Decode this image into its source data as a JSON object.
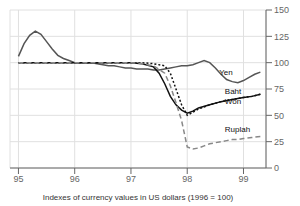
{
  "chart_data": {
    "type": "line",
    "x_label": "Indexes of currency values in US dollars (1996 = 100)",
    "xlim": [
      94.85,
      99.4
    ],
    "ylim": [
      0,
      150
    ],
    "xticks": [
      95,
      96,
      97,
      98,
      99
    ],
    "yticks": [
      0,
      25,
      50,
      75,
      100,
      125,
      150
    ],
    "grid": true,
    "series": [
      {
        "name": "Yen",
        "color": "#555555",
        "line_style": "solid",
        "x": [
          95.0,
          95.1,
          95.2,
          95.3,
          95.4,
          95.5,
          95.6,
          95.7,
          95.8,
          95.9,
          96.0,
          96.1,
          96.2,
          96.3,
          96.4,
          96.5,
          96.6,
          96.7,
          96.8,
          96.9,
          97.0,
          97.1,
          97.2,
          97.3,
          97.4,
          97.5,
          97.6,
          97.7,
          97.8,
          97.9,
          98.0,
          98.1,
          98.2,
          98.3,
          98.4,
          98.5,
          98.6,
          98.7,
          98.8,
          98.9,
          99.0,
          99.1,
          99.2,
          99.3
        ],
        "values": [
          106,
          118,
          126,
          130,
          127,
          120,
          113,
          107,
          104,
          102,
          100,
          100,
          100,
          100,
          99,
          98,
          97,
          97,
          96,
          95,
          95,
          94,
          94,
          94,
          93,
          93,
          94,
          95,
          96,
          97,
          97,
          98,
          100,
          102,
          100,
          95,
          89,
          84,
          82,
          81,
          83,
          86,
          89,
          91
        ]
      },
      {
        "name": "Baht",
        "color": "#111111",
        "line_style": "solid",
        "x": [
          95.0,
          95.2,
          95.4,
          95.6,
          95.8,
          96.0,
          96.2,
          96.4,
          96.6,
          96.8,
          97.0,
          97.2,
          97.4,
          97.5,
          97.6,
          97.7,
          97.8,
          97.9,
          98.0,
          98.1,
          98.2,
          98.4,
          98.6,
          98.8,
          99.0,
          99.15,
          99.3
        ],
        "values": [
          100,
          100,
          100,
          100,
          100,
          100,
          100,
          100,
          100,
          100,
          100,
          99,
          96,
          90,
          80,
          68,
          60,
          55,
          52,
          54,
          57,
          60,
          63,
          65,
          67,
          68,
          70
        ]
      },
      {
        "name": "Won",
        "color": "#111111",
        "line_style": "dotted",
        "x": [
          95.0,
          95.2,
          95.4,
          95.6,
          95.8,
          96.0,
          96.2,
          96.4,
          96.6,
          96.8,
          97.0,
          97.2,
          97.4,
          97.6,
          97.7,
          97.8,
          97.9,
          98.0,
          98.1,
          98.2,
          98.4,
          98.6,
          98.8,
          99.0,
          99.15,
          99.3
        ],
        "values": [
          100,
          100,
          100,
          100,
          100,
          100,
          100,
          100,
          100,
          100,
          100,
          100,
          99,
          97,
          90,
          75,
          60,
          50,
          53,
          56,
          60,
          63,
          65,
          67,
          68,
          70
        ]
      },
      {
        "name": "Ruplah",
        "color": "#888888",
        "line_style": "dashed",
        "x": [
          95.0,
          95.2,
          95.4,
          95.6,
          95.8,
          96.0,
          96.2,
          96.4,
          96.6,
          96.8,
          97.0,
          97.2,
          97.4,
          97.6,
          97.7,
          97.8,
          97.9,
          98.0,
          98.1,
          98.2,
          98.3,
          98.4,
          98.5,
          98.6,
          98.7,
          98.8,
          98.9,
          99.0,
          99.15,
          99.3
        ],
        "values": [
          100,
          100,
          100,
          100,
          100,
          100,
          100,
          100,
          100,
          100,
          100,
          99,
          97,
          90,
          78,
          62,
          45,
          20,
          18,
          19,
          21,
          23,
          24,
          25,
          26,
          27,
          27,
          28,
          29,
          30
        ]
      }
    ],
    "annotations": [
      {
        "text": "Yen",
        "x": 98.55,
        "y": 91
      },
      {
        "text": "Baht",
        "x": 98.65,
        "y": 73
      },
      {
        "text": "Won",
        "x": 98.65,
        "y": 63
      },
      {
        "text": "Ruplah",
        "x": 98.65,
        "y": 37
      }
    ]
  }
}
